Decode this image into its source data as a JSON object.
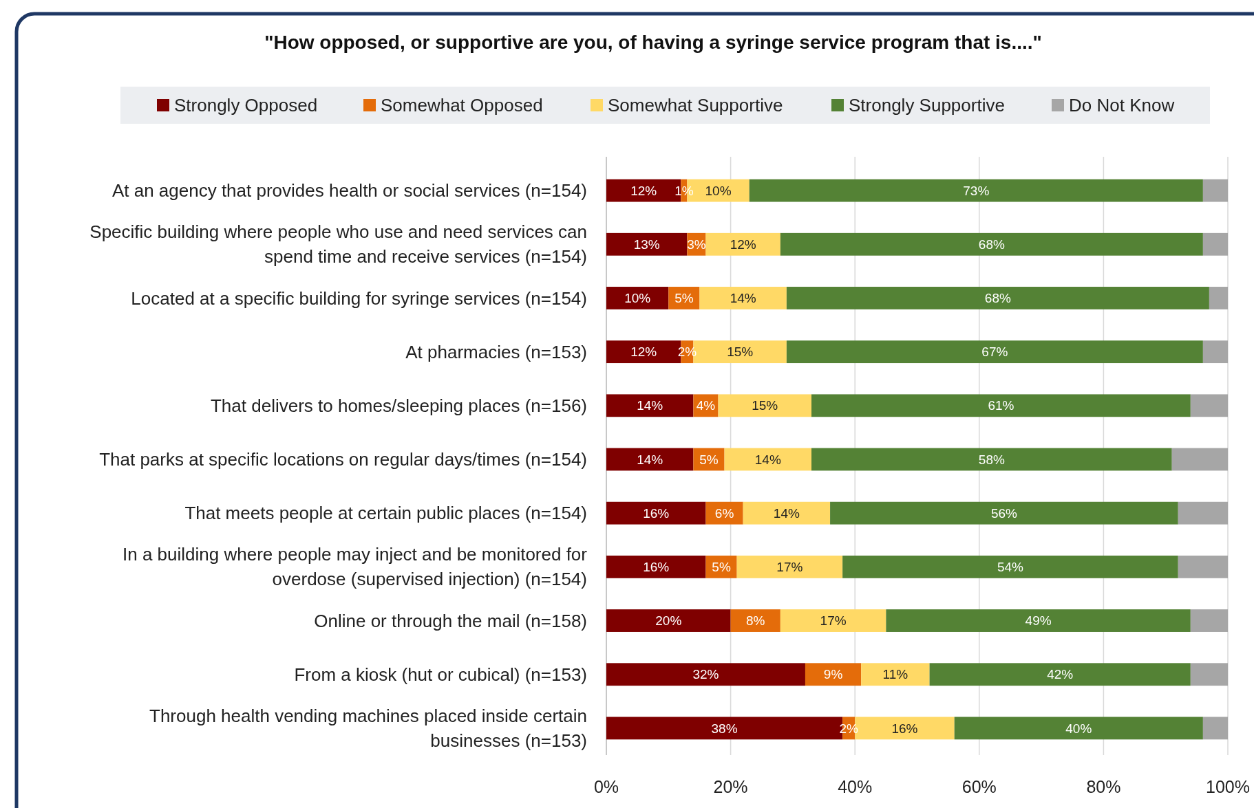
{
  "chart_data": {
    "type": "bar",
    "orientation": "horizontal",
    "stacked": true,
    "title": "\"How opposed, or supportive are you, of having a syringe service program that is....\"",
    "categories": [
      "At an agency that provides health or social services (n=154)",
      "Specific building where people who use and need services can spend time and receive services (n=154)",
      "Located at a specific building for syringe services (n=154)",
      "At pharmacies (n=153)",
      "That delivers to homes/sleeping places (n=156)",
      "That parks at specific locations on regular days/times (n=154)",
      "That meets people at certain public places (n=154)",
      "In a building where people may inject and be monitored for overdose (supervised injection) (n=154)",
      "Online or through the mail (n=158)",
      "From a kiosk (hut or cubical) (n=153)",
      "Through health vending machines placed inside certain businesses (n=153)"
    ],
    "series": [
      {
        "name": "Strongly Opposed",
        "color": "#7f0000",
        "values": [
          12,
          13,
          10,
          12,
          14,
          14,
          16,
          16,
          20,
          32,
          38
        ],
        "value_labels": [
          "12%",
          "13%",
          "10%",
          "12%",
          "14%",
          "14%",
          "16%",
          "16%",
          "20%",
          "32%",
          "38%"
        ]
      },
      {
        "name": "Somewhat Opposed",
        "color": "#e46c0a",
        "values": [
          1,
          3,
          5,
          2,
          4,
          5,
          6,
          5,
          8,
          9,
          2
        ],
        "value_labels": [
          "1%",
          "3%",
          "5%",
          "2%",
          "4%",
          "5%",
          "6%",
          "5%",
          "8%",
          "9%",
          "2%"
        ]
      },
      {
        "name": "Somewhat Supportive",
        "color": "#ffd966",
        "values": [
          10,
          12,
          14,
          15,
          15,
          14,
          14,
          17,
          17,
          11,
          16
        ],
        "value_labels": [
          "10%",
          "12%",
          "14%",
          "15%",
          "15%",
          "14%",
          "14%",
          "17%",
          "17%",
          "11%",
          "16%"
        ]
      },
      {
        "name": "Strongly Supportive",
        "color": "#548235",
        "values": [
          73,
          68,
          68,
          67,
          61,
          58,
          56,
          54,
          49,
          42,
          40
        ],
        "value_labels": [
          "73%",
          "68%",
          "68%",
          "67%",
          "61%",
          "58%",
          "56%",
          "54%",
          "49%",
          "42%",
          "40%"
        ]
      },
      {
        "name": "Do Not Know",
        "color": "#a6a6a6",
        "values": [
          4,
          4,
          3,
          4,
          6,
          9,
          8,
          8,
          6,
          6,
          4
        ]
      }
    ],
    "xlim": [
      0,
      100
    ],
    "xticks": [
      {
        "value": 0,
        "label": "0%"
      },
      {
        "value": 20,
        "label": "20%"
      },
      {
        "value": 40,
        "label": "40%"
      },
      {
        "value": 60,
        "label": "60%"
      },
      {
        "value": 80,
        "label": "80%"
      },
      {
        "value": 100,
        "label": "100%"
      }
    ],
    "grid": "x",
    "legend": "top"
  }
}
